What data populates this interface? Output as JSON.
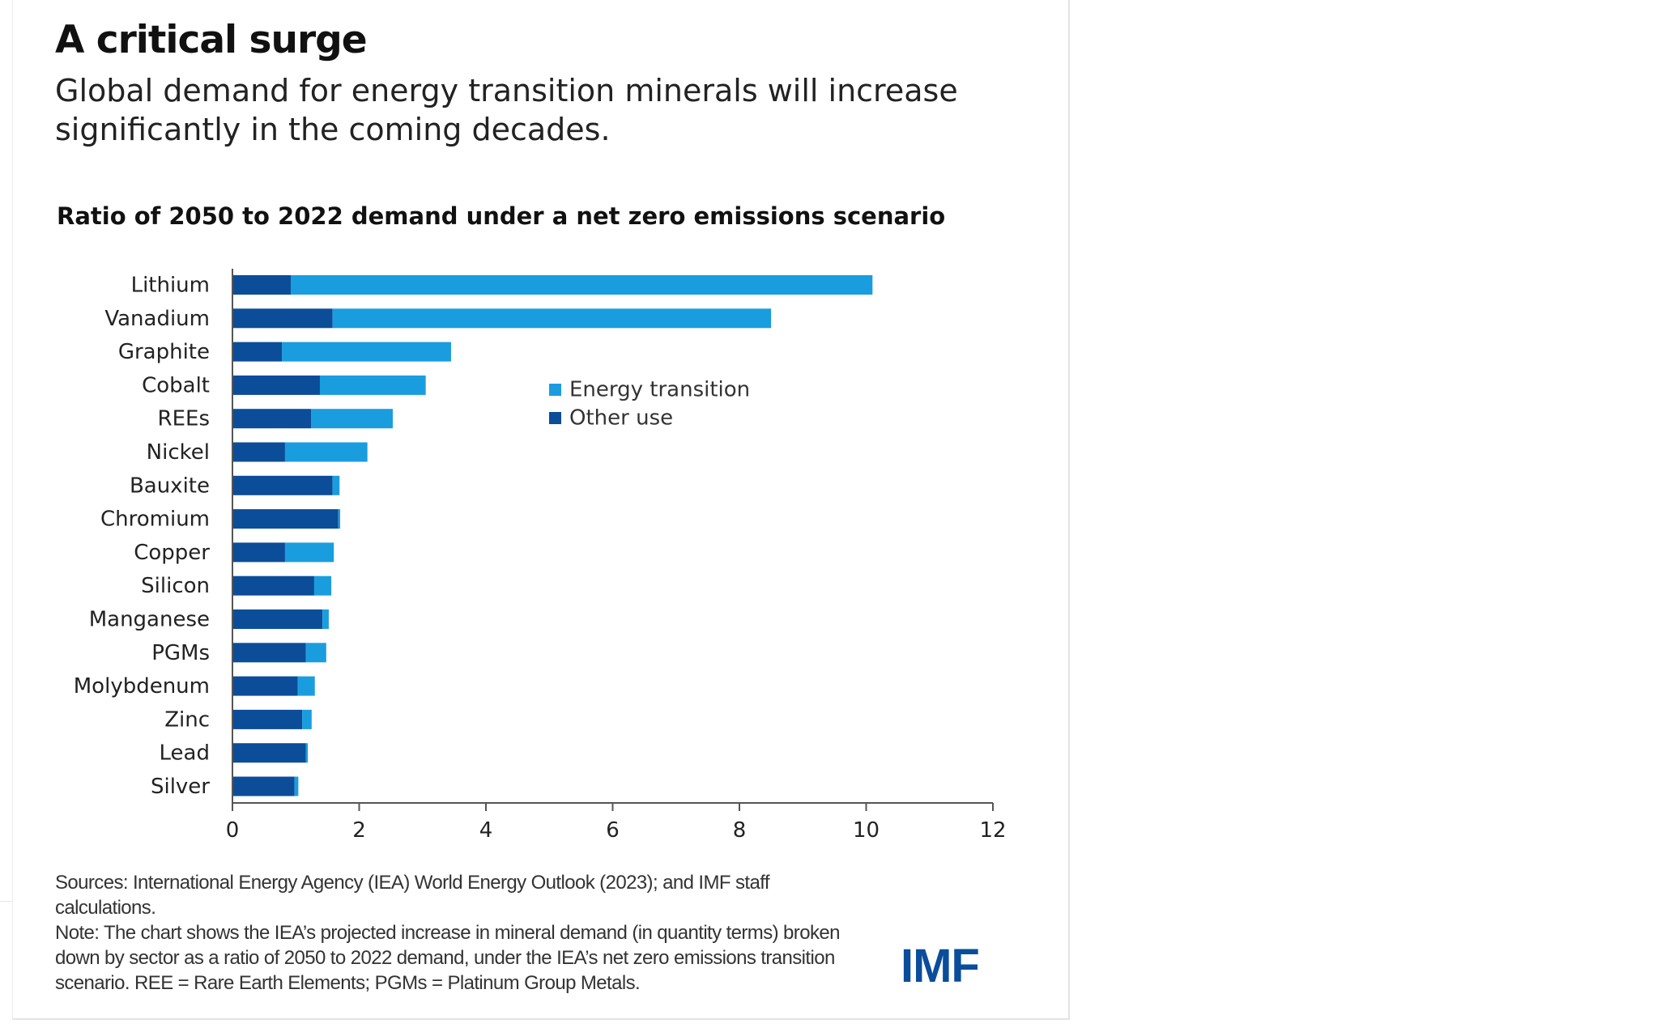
{
  "header": {
    "title": "A critical surge",
    "subtitle": "Global demand for energy transition minerals will increase significantly in the coming decades."
  },
  "footer": {
    "sources": "Sources: International Energy Agency (IEA) World Energy Outlook (2023); and IMF staff calculations.",
    "note": "Note: The chart shows the IEA’s projected increase in mineral demand (in quantity terms) broken down by sector as a ratio of 2050 to 2022 demand, under the IEA’s net zero emissions transition scenario. REE = Rare Earth Elements; PGMs = Platinum Group Metals.",
    "logo": "IMF"
  },
  "colors": {
    "energy_transition": "#1a9ddf",
    "other_use": "#0b4d99",
    "axis": "#555555",
    "logo": "#0a4d9a"
  },
  "chart_data": {
    "type": "bar",
    "orientation": "horizontal",
    "stacked": true,
    "title": "Ratio of 2050 to 2022 demand under a net zero emissions scenario",
    "xlabel": "",
    "ylabel": "",
    "xlim": [
      0,
      12
    ],
    "x_ticks": [
      0,
      2,
      4,
      6,
      8,
      10,
      12
    ],
    "grid": false,
    "legend": "right",
    "categories": [
      "Lithium",
      "Vanadium",
      "Graphite",
      "Cobalt",
      "REEs",
      "Nickel",
      "Bauxite",
      "Chromium",
      "Copper",
      "Silicon",
      "Manganese",
      "PGMs",
      "Molybdenum",
      "Zinc",
      "Lead",
      "Silver"
    ],
    "series": [
      {
        "name": "Other use",
        "color": "#0b4d99",
        "values": [
          0.92,
          1.58,
          0.78,
          1.38,
          1.24,
          0.83,
          1.58,
          1.67,
          0.83,
          1.29,
          1.42,
          1.16,
          1.03,
          1.1,
          1.16,
          0.98
        ]
      },
      {
        "name": "Energy transition",
        "color": "#1a9ddf",
        "values": [
          9.18,
          6.92,
          2.67,
          1.67,
          1.29,
          1.3,
          0.11,
          0.03,
          0.77,
          0.27,
          0.1,
          0.32,
          0.27,
          0.15,
          0.03,
          0.06
        ]
      }
    ]
  }
}
